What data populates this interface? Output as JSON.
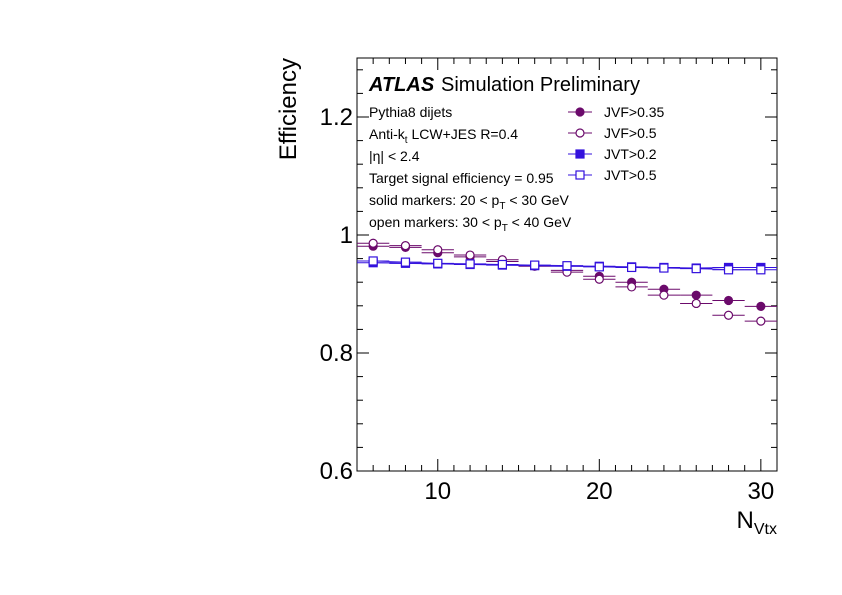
{
  "chart_data": {
    "type": "scatter",
    "title": "",
    "banner": {
      "experiment": "ATLAS",
      "status": "Simulation Preliminary"
    },
    "info_lines": [
      {
        "pre": "Pythia8 dijets",
        "sub": "",
        "post": ""
      },
      {
        "pre": "Anti-k",
        "sub": "t",
        "post": " LCW+JES R=0.4"
      },
      {
        "pre": "|η| < 2.4",
        "sub": "",
        "post": ""
      },
      {
        "pre": "Target signal efficiency = 0.95",
        "sub": "",
        "post": ""
      },
      {
        "pre": "solid markers: 20 < p",
        "sub": "T",
        "post": " < 30 GeV"
      },
      {
        "pre": "open markers: 30 < p",
        "sub": "T",
        "post": " < 40 GeV"
      }
    ],
    "xlabel": {
      "main": "N",
      "sub": "Vtx"
    },
    "ylabel": "Efficiency",
    "xlim": [
      5,
      31
    ],
    "ylim": [
      0.6,
      1.3
    ],
    "x_ticks": [
      10,
      20,
      30
    ],
    "x_tick_labels": [
      "10",
      "20",
      "30"
    ],
    "y_ticks": [
      0.6,
      0.8,
      1.0,
      1.2
    ],
    "y_tick_labels": [
      "0.6",
      "0.8",
      "1",
      "1.2"
    ],
    "x": [
      6,
      8,
      10,
      12,
      14,
      16,
      18,
      20,
      22,
      24,
      26,
      28,
      30
    ],
    "x_bin_half_width": 1,
    "legend_position": "top-right",
    "series": [
      {
        "name": "JVF>0.35",
        "marker": "circle",
        "filled": true,
        "color": "#6b0a6b",
        "values": [
          0.981,
          0.979,
          0.97,
          0.963,
          0.955,
          0.948,
          0.94,
          0.93,
          0.92,
          0.908,
          0.898,
          0.889,
          0.879
        ]
      },
      {
        "name": "JVF>0.5",
        "marker": "circle",
        "filled": false,
        "color": "#6b0a6b",
        "values": [
          0.986,
          0.982,
          0.975,
          0.966,
          0.958,
          0.947,
          0.937,
          0.925,
          0.912,
          0.898,
          0.884,
          0.864,
          0.854
        ]
      },
      {
        "name": "JVT>0.2",
        "marker": "square",
        "filled": true,
        "color": "#3311dd",
        "values": [
          0.953,
          0.952,
          0.951,
          0.95,
          0.949,
          0.948,
          0.947,
          0.947,
          0.946,
          0.945,
          0.944,
          0.945,
          0.945
        ]
      },
      {
        "name": "JVT>0.5",
        "marker": "square",
        "filled": false,
        "color": "#3311dd",
        "values": [
          0.956,
          0.954,
          0.952,
          0.951,
          0.95,
          0.949,
          0.948,
          0.946,
          0.945,
          0.944,
          0.943,
          0.941,
          0.941
        ]
      }
    ]
  }
}
